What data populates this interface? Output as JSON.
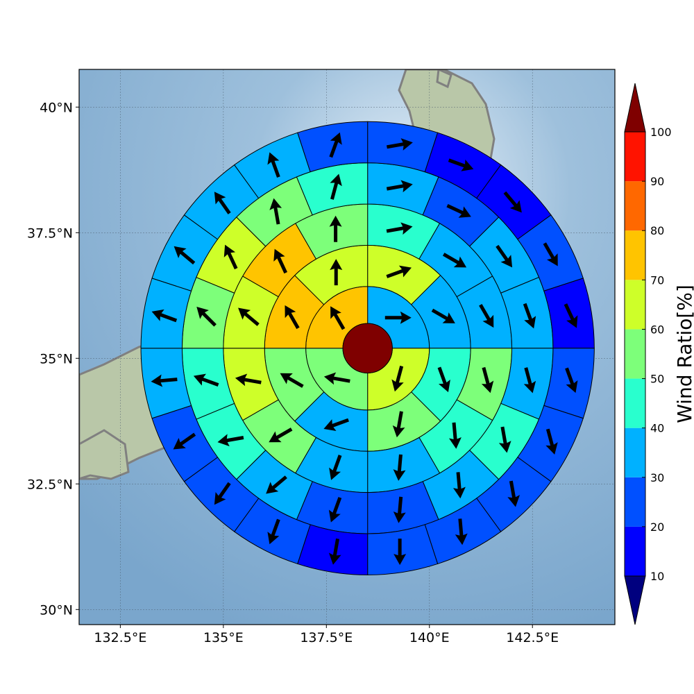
{
  "chart_data": {
    "type": "polar-sector-map",
    "title": "",
    "map": {
      "lon_range": [
        131.5,
        144.5
      ],
      "lat_range": [
        29.7,
        40.75
      ],
      "x_ticks": [
        132.5,
        135,
        137.5,
        140,
        142.5
      ],
      "x_tick_labels": [
        "132.5°E",
        "135°E",
        "137.5°E",
        "140°E",
        "142.5°E"
      ],
      "y_ticks": [
        30,
        32.5,
        35,
        37.5,
        40
      ],
      "y_tick_labels": [
        "30°N",
        "32.5°N",
        "35°N",
        "37.5°N",
        "40°N"
      ],
      "grid": true,
      "center": {
        "lon": 138.5,
        "lat": 35.2
      },
      "ring_edges_deg": [
        0.6,
        1.5,
        2.5,
        3.5,
        4.5,
        5.5
      ],
      "sectors_per_ring": [
        4,
        8,
        12,
        16,
        20
      ],
      "center_value": 100
    },
    "rings": [
      {
        "values": [
          30,
          60,
          50,
          70
        ],
        "arrow_dir": [
          90,
          195,
          280,
          330
        ]
      },
      {
        "values": [
          60,
          30,
          40,
          50,
          30,
          50,
          70,
          60
        ],
        "arrow_dir": [
          70,
          120,
          160,
          190,
          250,
          300,
          330,
          360
        ]
      },
      {
        "values": [
          40,
          30,
          30,
          50,
          40,
          30,
          30,
          50,
          60,
          60,
          70,
          50
        ],
        "arrow_dir": [
          80,
          120,
          150,
          165,
          175,
          185,
          200,
          240,
          280,
          310,
          335,
          360
        ]
      },
      {
        "values": [
          30,
          20,
          30,
          30,
          30,
          40,
          30,
          20,
          20,
          30,
          40,
          40,
          50,
          60,
          50,
          40
        ],
        "arrow_dir": [
          80,
          115,
          145,
          160,
          165,
          170,
          175,
          185,
          200,
          230,
          260,
          290,
          315,
          335,
          350,
          15
        ]
      },
      {
        "values": [
          20,
          10,
          10,
          20,
          10,
          20,
          20,
          20,
          20,
          20,
          10,
          20,
          20,
          20,
          30,
          30,
          30,
          30,
          30,
          20
        ],
        "arrow_dir": [
          80,
          110,
          140,
          150,
          155,
          160,
          165,
          170,
          175,
          180,
          190,
          200,
          215,
          235,
          265,
          290,
          310,
          325,
          340,
          20
        ]
      }
    ],
    "colorbar": {
      "label": "Wind Ratio[%]",
      "ticks": [
        10,
        20,
        30,
        40,
        50,
        60,
        70,
        80,
        90,
        100
      ],
      "tick_labels": [
        "10",
        "20",
        "30",
        "40",
        "50",
        "60",
        "70",
        "80",
        "90",
        "100"
      ],
      "extend": "both",
      "under_color": "#00007f",
      "over_color": "#7f0000",
      "bins": [
        {
          "from": 10,
          "to": 20,
          "color": "#0000ff"
        },
        {
          "from": 20,
          "to": 30,
          "color": "#0050ff"
        },
        {
          "from": 30,
          "to": 40,
          "color": "#00b1ff"
        },
        {
          "from": 40,
          "to": 50,
          "color": "#29ffce"
        },
        {
          "from": 50,
          "to": 60,
          "color": "#7dff7a"
        },
        {
          "from": 60,
          "to": 70,
          "color": "#ceff29"
        },
        {
          "from": 70,
          "to": 80,
          "color": "#ffc400"
        },
        {
          "from": 80,
          "to": 90,
          "color": "#ff6800"
        },
        {
          "from": 90,
          "to": 100,
          "color": "#ff1300"
        }
      ]
    }
  }
}
